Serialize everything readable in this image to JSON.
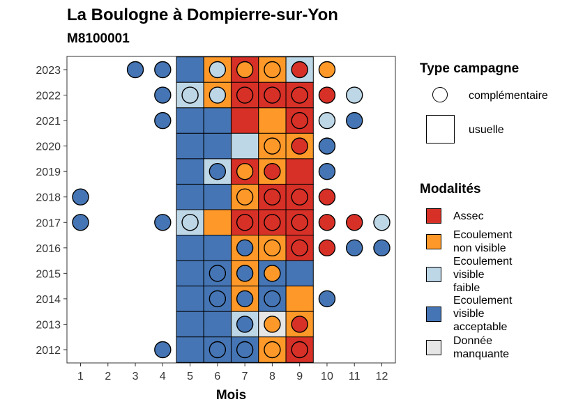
{
  "title": "La Boulogne à Dompierre-sur-Yon",
  "subtitle": "M8100001",
  "colors": {
    "assec": "#d73027",
    "ecoulement_non_visible": "#fe9929",
    "ecoulement_visible_faible": "#bdd7e7",
    "ecoulement_visible_acceptable": "#4575b4",
    "donnee_manquante": "#e6e6e6"
  },
  "legend_type": {
    "title": "Type campagne",
    "items": [
      {
        "label": "complémentaire",
        "shape": "circle"
      },
      {
        "label": "usuelle",
        "shape": "square"
      }
    ]
  },
  "legend_modalites": {
    "title": "Modalités",
    "items": [
      {
        "key": "A",
        "lines": [
          "Assec"
        ]
      },
      {
        "key": "N",
        "lines": [
          "Ecoulement",
          "non visible"
        ]
      },
      {
        "key": "F",
        "lines": [
          "Ecoulement",
          "visible",
          "faible"
        ]
      },
      {
        "key": "V",
        "lines": [
          "Ecoulement",
          "visible",
          "acceptable"
        ]
      },
      {
        "key": "M",
        "lines": [
          "Donnée",
          "manquante"
        ]
      }
    ]
  },
  "chart_data": {
    "type": "heatmap",
    "xlabel": "Mois",
    "ylabel": "",
    "x_ticks": [
      "1",
      "2",
      "3",
      "4",
      "5",
      "6",
      "7",
      "8",
      "9",
      "10",
      "11",
      "12"
    ],
    "y_ticks": [
      "2012",
      "2013",
      "2014",
      "2015",
      "2016",
      "2017",
      "2018",
      "2019",
      "2020",
      "2021",
      "2022",
      "2023"
    ],
    "codes": {
      "A": "Assec",
      "N": "Ecoulement non visible",
      "F": "Ecoulement visible faible",
      "V": "Ecoulement visible acceptable",
      "M": "Donnée manquante"
    },
    "usuelle": [
      {
        "year": 2023,
        "months": {
          "5": "V",
          "6": "N",
          "7": "A",
          "8": "N",
          "9": "F"
        }
      },
      {
        "year": 2022,
        "months": {
          "5": "F",
          "6": "N",
          "7": "A",
          "8": "A",
          "9": "A"
        }
      },
      {
        "year": 2021,
        "months": {
          "5": "V",
          "6": "V",
          "7": "A",
          "8": "N",
          "9": "A"
        }
      },
      {
        "year": 2020,
        "months": {
          "5": "V",
          "6": "V",
          "7": "F",
          "8": "N",
          "9": "N"
        }
      },
      {
        "year": 2019,
        "months": {
          "5": "V",
          "6": "F",
          "7": "A",
          "8": "N",
          "9": "A"
        }
      },
      {
        "year": 2018,
        "months": {
          "5": "V",
          "6": "V",
          "7": "N",
          "8": "A",
          "9": "A"
        }
      },
      {
        "year": 2017,
        "months": {
          "5": "F",
          "6": "N",
          "7": "A",
          "8": "A",
          "9": "A"
        }
      },
      {
        "year": 2016,
        "months": {
          "5": "V",
          "6": "V",
          "7": "N",
          "8": "N",
          "9": "A"
        }
      },
      {
        "year": 2015,
        "months": {
          "5": "V",
          "6": "V",
          "7": "N",
          "8": "V",
          "9": "V"
        }
      },
      {
        "year": 2014,
        "months": {
          "5": "V",
          "6": "V",
          "7": "N",
          "8": "V",
          "9": "N"
        }
      },
      {
        "year": 2013,
        "months": {
          "5": "V",
          "6": "V",
          "7": "F",
          "8": "M",
          "9": "N"
        }
      },
      {
        "year": 2012,
        "months": {
          "5": "V",
          "6": "V",
          "7": "V",
          "8": "N",
          "9": "A"
        }
      }
    ],
    "complementaire": [
      {
        "year": 2023,
        "months": {
          "3": "V",
          "4": "V",
          "6": "F",
          "7": "N",
          "8": "N",
          "9": "A",
          "10": "N"
        }
      },
      {
        "year": 2022,
        "months": {
          "4": "V",
          "5": "F",
          "6": "F",
          "7": "A",
          "8": "A",
          "9": "A",
          "10": "A",
          "11": "F"
        }
      },
      {
        "year": 2021,
        "months": {
          "4": "V",
          "9": "A",
          "10": "F",
          "11": "V"
        }
      },
      {
        "year": 2020,
        "months": {
          "8": "N",
          "9": "A",
          "10": "V"
        }
      },
      {
        "year": 2019,
        "months": {
          "6": "V",
          "7": "N",
          "8": "A",
          "10": "V"
        }
      },
      {
        "year": 2018,
        "months": {
          "1": "V",
          "7": "N",
          "8": "A",
          "9": "A",
          "10": "A"
        }
      },
      {
        "year": 2017,
        "months": {
          "1": "V",
          "4": "V",
          "5": "F",
          "7": "A",
          "8": "A",
          "9": "A",
          "10": "A",
          "11": "A",
          "12": "F"
        }
      },
      {
        "year": 2016,
        "months": {
          "7": "V",
          "8": "N",
          "9": "A",
          "10": "A",
          "11": "V",
          "12": "V"
        }
      },
      {
        "year": 2015,
        "months": {
          "6": "V",
          "7": "V",
          "8": "N"
        }
      },
      {
        "year": 2014,
        "months": {
          "6": "V",
          "7": "V",
          "8": "V",
          "10": "V"
        }
      },
      {
        "year": 2013,
        "months": {
          "7": "V",
          "8": "N",
          "9": "A"
        }
      },
      {
        "year": 2012,
        "months": {
          "4": "V",
          "6": "V",
          "7": "V",
          "8": "N",
          "9": "A"
        }
      }
    ]
  }
}
